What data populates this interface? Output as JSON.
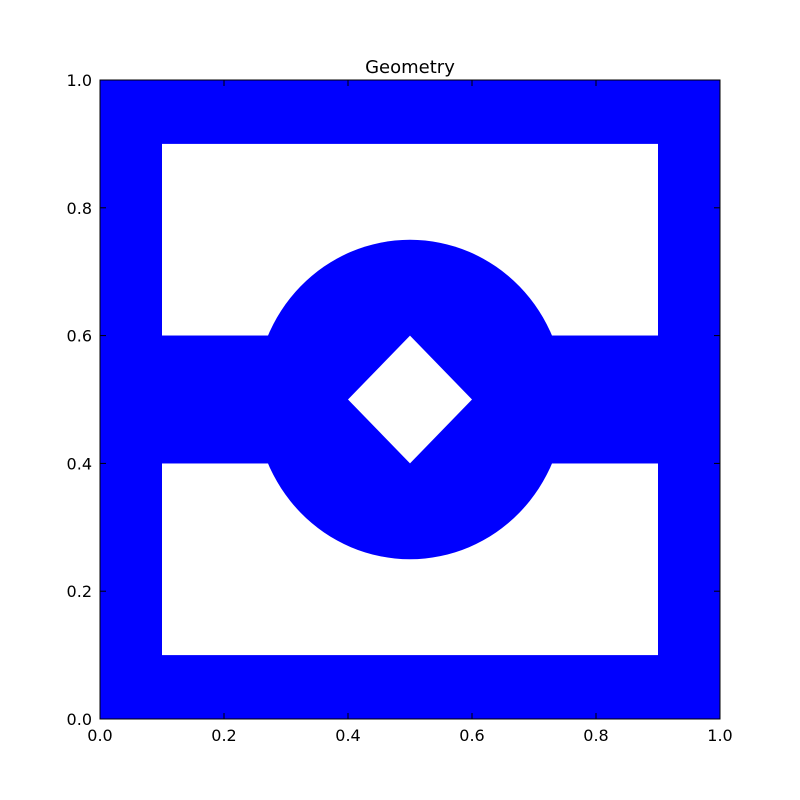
{
  "chart_data": {
    "type": "area",
    "title": "Geometry",
    "xlabel": "",
    "ylabel": "",
    "xlim": [
      0.0,
      1.0
    ],
    "ylim": [
      0.0,
      1.0
    ],
    "xticks": [
      "0.0",
      "0.2",
      "0.4",
      "0.6",
      "0.8",
      "1.0"
    ],
    "yticks": [
      "0.0",
      "0.2",
      "0.4",
      "0.6",
      "0.8",
      "1.0"
    ],
    "grid": false,
    "fill_color": "#0000ff",
    "background_color": "#ffffff",
    "shapes": {
      "outer_square": {
        "xmin": 0.0,
        "xmax": 1.0,
        "ymin": 0.0,
        "ymax": 1.0
      },
      "upper_hole": {
        "xmin": 0.1,
        "xmax": 0.9,
        "ymin": 0.6,
        "ymax": 0.9
      },
      "lower_hole": {
        "xmin": 0.1,
        "xmax": 0.9,
        "ymin": 0.1,
        "ymax": 0.4
      },
      "central_disk": {
        "cx": 0.5,
        "cy": 0.5,
        "r": 0.25
      },
      "diamond_hole": {
        "cx": 0.5,
        "cy": 0.5,
        "half_diagonal": 0.1
      }
    }
  }
}
